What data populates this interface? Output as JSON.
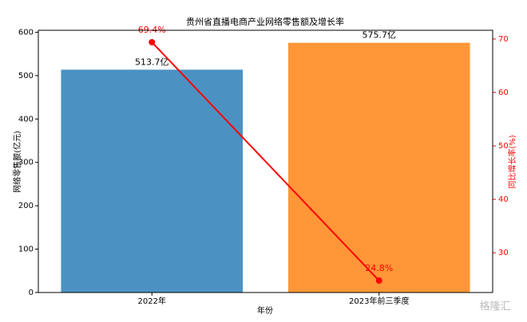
{
  "chart_data": {
    "type": "bar",
    "title": "贵州省直播电商产业网络零售额及增长率",
    "categories": [
      "2022年",
      "2023年前三季度"
    ],
    "xlabel": "年份",
    "ylabel": "网络零售额(亿元)",
    "y2label": "同比增长率(%)",
    "values": [
      513.7,
      575.7
    ],
    "value_labels": [
      "513.7亿",
      "575.7亿"
    ],
    "colors": [
      "#4b92c3",
      "#ff9738"
    ],
    "line": {
      "type": "line",
      "axis": "y2",
      "color": "#ff0000",
      "values": [
        69.4,
        24.8
      ],
      "value_labels": [
        "69.4%",
        "24.8%"
      ]
    },
    "ylim": [
      0,
      604.5
    ],
    "yticks": [
      0,
      100,
      200,
      300,
      400,
      500,
      600
    ],
    "y2lim": [
      22.57,
      71.63
    ],
    "y2ticks": [
      30,
      40,
      50,
      60,
      70
    ],
    "watermark": "格隆汇"
  }
}
